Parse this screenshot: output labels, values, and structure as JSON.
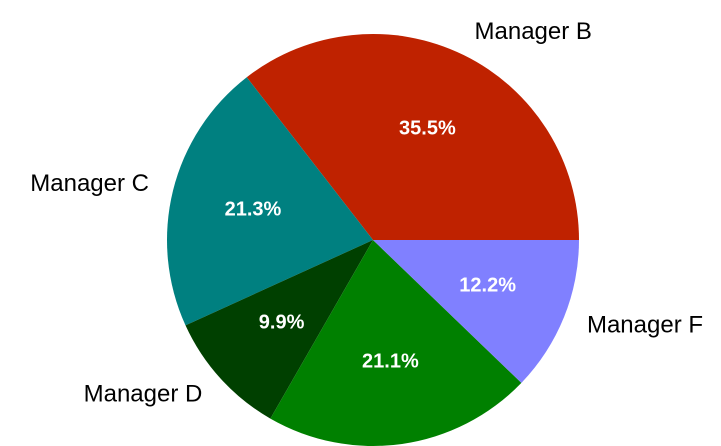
{
  "chart_data": {
    "type": "pie",
    "categories": [
      "Manager B",
      "Manager C",
      "Manager D",
      null,
      "Manager F"
    ],
    "values": [
      35.5,
      21.3,
      9.9,
      21.1,
      12.2
    ],
    "value_labels": [
      "35.5%",
      "21.3%",
      "9.9%",
      "21.1%",
      "12.2%"
    ],
    "colors": [
      "#bf2200",
      "#008080",
      "#004000",
      "#008000",
      "#8080ff"
    ]
  }
}
